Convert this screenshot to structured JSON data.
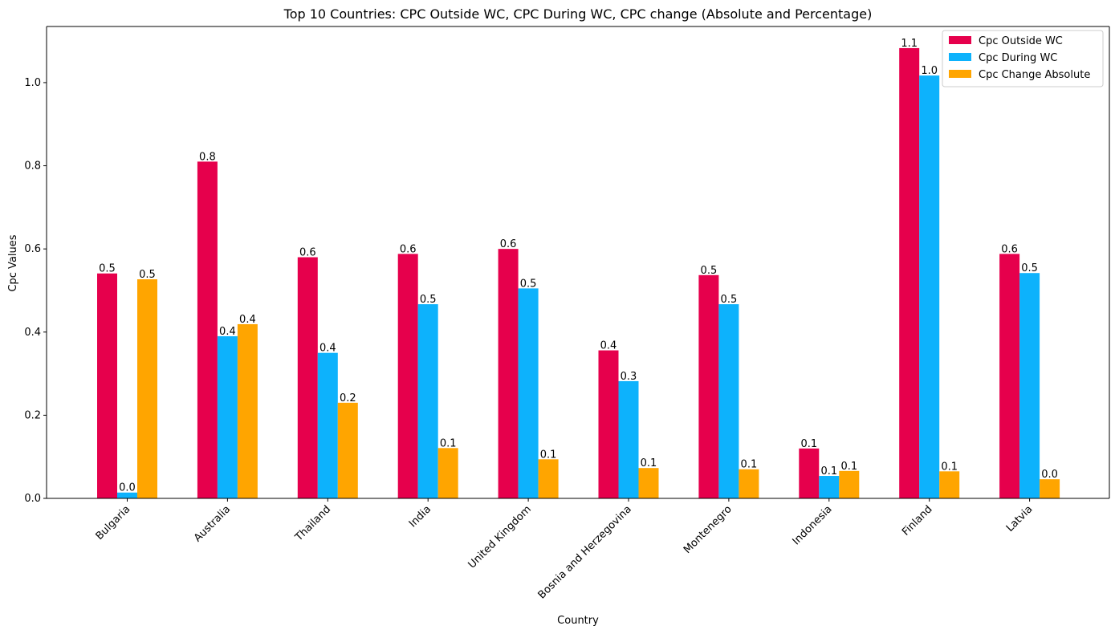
{
  "chart_data": {
    "type": "bar",
    "title": "Top 10 Countries: CPC Outside WC, CPC During WC, CPC change (Absolute and Percentage)",
    "xlabel": "Country",
    "ylabel": "Cpc Values",
    "ylim": [
      0,
      1.135
    ],
    "yticks": [
      0.0,
      0.2,
      0.4,
      0.6,
      0.8,
      1.0
    ],
    "ytick_labels": [
      "0.0",
      "0.2",
      "0.4",
      "0.6",
      "0.8",
      "1.0"
    ],
    "grid": false,
    "legend_position": "top-right",
    "categories": [
      "Bulgaria",
      "Australia",
      "Thailand",
      "India",
      "United Kingdom",
      "Bosnia and Herzegovina",
      "Montenegro",
      "Indonesia",
      "Finland",
      "Latvia"
    ],
    "series": [
      {
        "name": "Cpc Outside WC",
        "color": "#e6004c",
        "values": [
          0.541,
          0.81,
          0.58,
          0.588,
          0.6,
          0.356,
          0.537,
          0.12,
          1.083,
          0.588
        ],
        "labels": [
          "0.5",
          "0.8",
          "0.6",
          "0.6",
          "0.6",
          "0.4",
          "0.5",
          "0.1",
          "1.1",
          "0.6"
        ]
      },
      {
        "name": "Cpc During WC",
        "color": "#0db2fc",
        "values": [
          0.014,
          0.39,
          0.35,
          0.467,
          0.505,
          0.282,
          0.467,
          0.054,
          1.017,
          0.542
        ],
        "labels": [
          "0.0",
          "0.4",
          "0.4",
          "0.5",
          "0.5",
          "0.3",
          "0.5",
          "0.1",
          "1.0",
          "0.5"
        ]
      },
      {
        "name": "Cpc Change Absolute",
        "color": "#ffa500",
        "values": [
          0.527,
          0.419,
          0.23,
          0.121,
          0.094,
          0.073,
          0.07,
          0.066,
          0.065,
          0.046
        ],
        "labels": [
          "0.5",
          "0.4",
          "0.2",
          "0.1",
          "0.1",
          "0.1",
          "0.1",
          "0.1",
          "0.1",
          "0.0"
        ]
      }
    ]
  }
}
